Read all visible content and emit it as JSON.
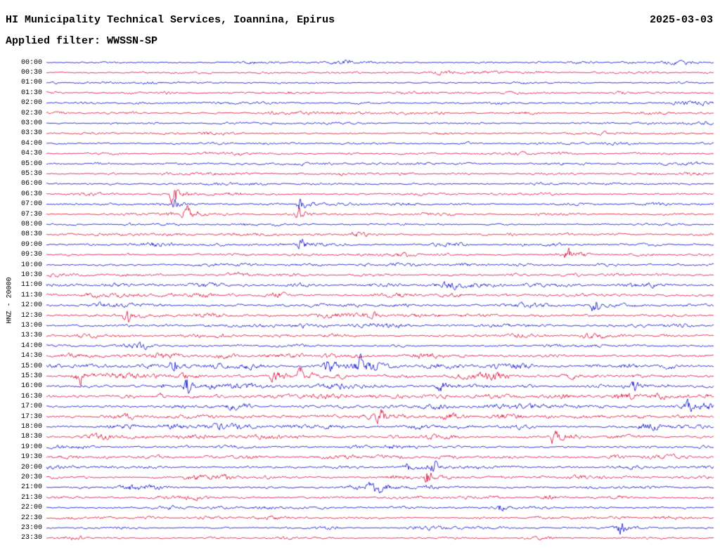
{
  "header": {
    "title": "HI Municipality Technical Services, Ioannina, Epirus",
    "date": "2025-03-03",
    "filter_label": "Applied filter: WWSSN-SP"
  },
  "y_axis": {
    "station_label": "HNZ - 20000"
  },
  "chart_data": {
    "type": "line",
    "subtype": "helicorder-seismogram",
    "title": "HI Municipality Technical Services, Ioannina, Epirus",
    "date": "2025-03-03",
    "filter": "WWSSN-SP",
    "channel": "HNZ",
    "scale_label": "20000",
    "minutes_per_row": 30,
    "grid": "off",
    "legend": "none",
    "row_labels": [
      "00:00",
      "00:30",
      "01:00",
      "01:30",
      "02:00",
      "02:30",
      "03:00",
      "03:30",
      "04:00",
      "04:30",
      "05:00",
      "05:30",
      "06:00",
      "06:30",
      "07:00",
      "07:30",
      "08:00",
      "08:30",
      "09:00",
      "09:30",
      "10:00",
      "10:30",
      "11:00",
      "11:30",
      "12:00",
      "12:30",
      "13:00",
      "13:30",
      "14:00",
      "14:30",
      "15:00",
      "15:30",
      "16:00",
      "16:30",
      "17:00",
      "17:30",
      "18:00",
      "18:30",
      "19:00",
      "19:30",
      "20:00",
      "20:30",
      "21:00",
      "21:30",
      "22:00",
      "22:30",
      "23:00",
      "23:30"
    ],
    "trace_colors": [
      "#0000cc",
      "#dd0033"
    ],
    "row_color_pattern": "alternate-blue-red",
    "activity": [
      1.0,
      1.0,
      0.9,
      1.0,
      1.1,
      1.1,
      0.9,
      1.0,
      0.9,
      1.0,
      1.1,
      1.0,
      0.9,
      1.0,
      1.0,
      1.0,
      0.9,
      1.2,
      1.2,
      1.1,
      1.3,
      1.3,
      1.5,
      1.6,
      1.5,
      1.6,
      1.5,
      1.4,
      1.2,
      1.7,
      1.9,
      2.0,
      1.9,
      2.1,
      1.9,
      1.9,
      1.8,
      1.6,
      1.4,
      1.5,
      1.4,
      1.3,
      1.3,
      1.2,
      1.1,
      1.1,
      1.0,
      0.9
    ],
    "events": [
      {
        "row": 13,
        "pos": 0.19,
        "amp": 18,
        "time": "~06:36"
      },
      {
        "row": 14,
        "pos": 0.19,
        "amp": 10,
        "time": "~07:06"
      },
      {
        "row": 14,
        "pos": 0.38,
        "amp": 14,
        "time": "~07:11"
      },
      {
        "row": 15,
        "pos": 0.21,
        "amp": 18,
        "time": "~07:36"
      },
      {
        "row": 15,
        "pos": 0.38,
        "amp": 8,
        "time": "~07:41"
      },
      {
        "row": 18,
        "pos": 0.38,
        "amp": 12,
        "time": "~09:11"
      },
      {
        "row": 19,
        "pos": 0.78,
        "amp": 8,
        "time": "~09:53"
      },
      {
        "row": 24,
        "pos": 0.82,
        "amp": 11,
        "time": "~12:25"
      },
      {
        "row": 25,
        "pos": 0.12,
        "amp": 9,
        "time": "~12:34"
      },
      {
        "row": 30,
        "pos": 0.19,
        "amp": 12,
        "time": "~15:06"
      },
      {
        "row": 30,
        "pos": 0.42,
        "amp": 9,
        "time": "~15:13"
      },
      {
        "row": 30,
        "pos": 0.47,
        "amp": 9,
        "time": "~15:14"
      },
      {
        "row": 31,
        "pos": 0.05,
        "amp": 8,
        "time": "~15:32"
      },
      {
        "row": 31,
        "pos": 0.34,
        "amp": 9,
        "time": "~15:40"
      },
      {
        "row": 31,
        "pos": 0.38,
        "amp": 8,
        "time": "~15:41"
      },
      {
        "row": 32,
        "pos": 0.21,
        "amp": 13,
        "time": "~16:06"
      },
      {
        "row": 32,
        "pos": 0.59,
        "amp": 8,
        "time": "~16:18"
      },
      {
        "row": 32,
        "pos": 0.88,
        "amp": 10,
        "time": "~16:26"
      },
      {
        "row": 34,
        "pos": 0.96,
        "amp": 10,
        "time": "~17:29"
      },
      {
        "row": 35,
        "pos": 0.5,
        "amp": 10,
        "time": "~17:45"
      },
      {
        "row": 37,
        "pos": 0.76,
        "amp": 12,
        "time": "~18:53"
      },
      {
        "row": 40,
        "pos": 0.54,
        "amp": 11,
        "time": "~20:16"
      },
      {
        "row": 40,
        "pos": 0.58,
        "amp": 8,
        "time": "~20:17"
      },
      {
        "row": 41,
        "pos": 0.57,
        "amp": 13,
        "time": "~20:47"
      },
      {
        "row": 44,
        "pos": 0.68,
        "amp": 7,
        "time": "~22:20"
      },
      {
        "row": 46,
        "pos": 0.86,
        "amp": 12,
        "time": "~23:26"
      }
    ]
  }
}
